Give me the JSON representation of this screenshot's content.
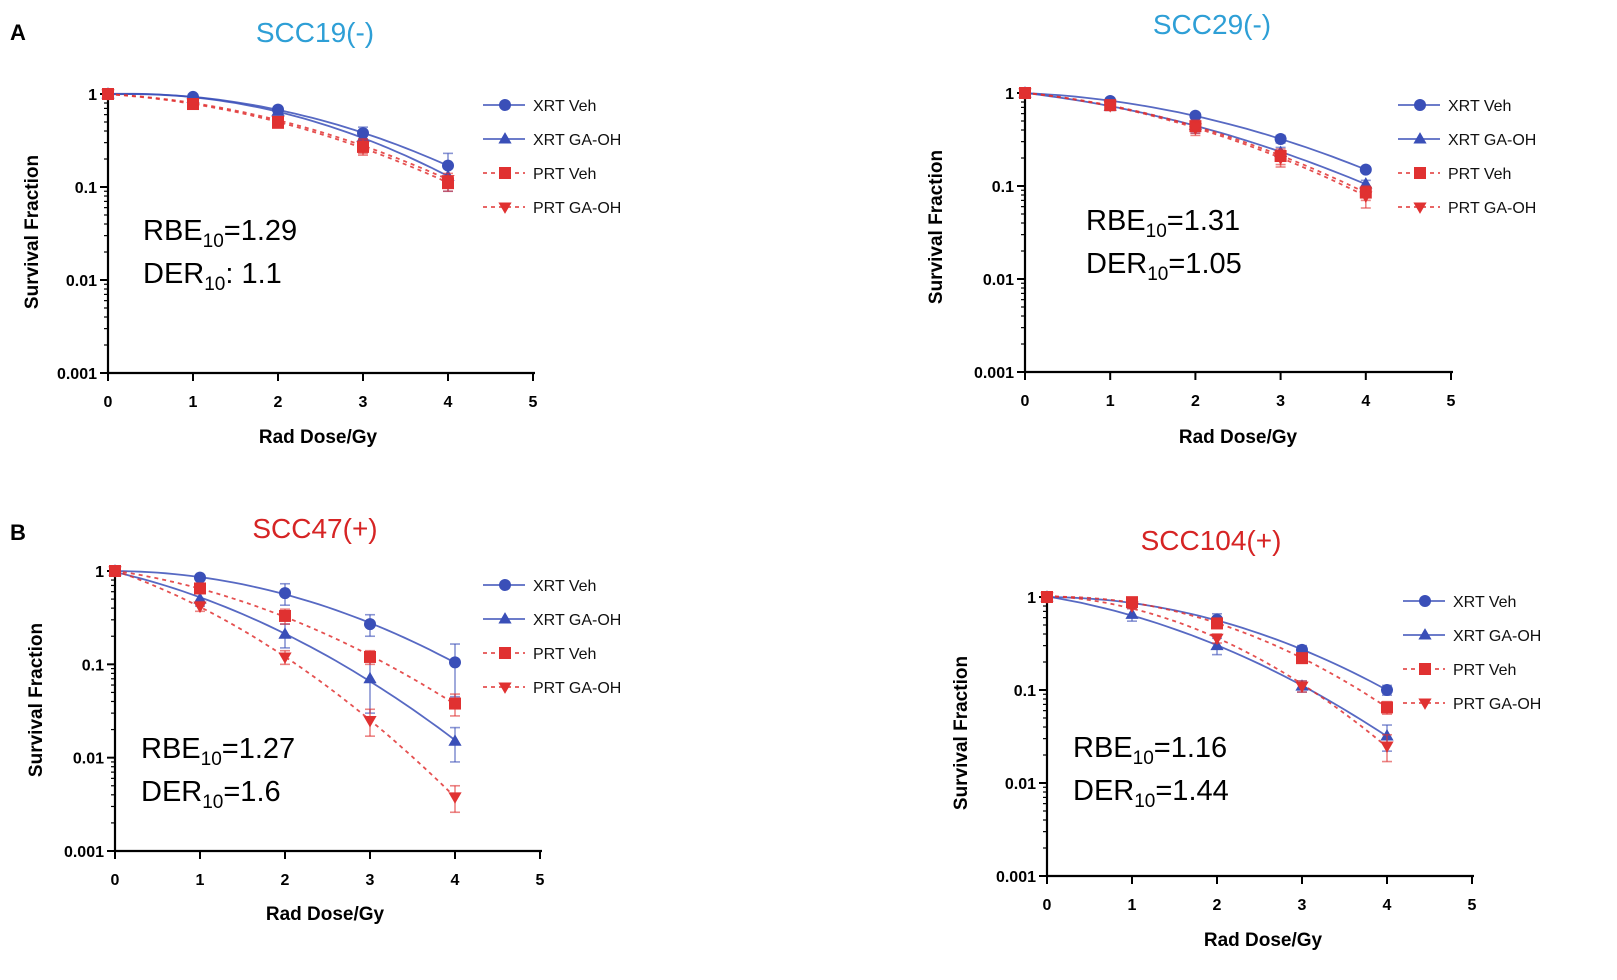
{
  "panel_labels": [
    "A",
    "B"
  ],
  "chart_data": [
    {
      "type": "line",
      "title": "SCC19(-)",
      "title_color": "#2e9fd6",
      "xlabel": "Rad Dose/Gy",
      "ylabel": "Survival Fraction",
      "xscale": "linear",
      "yscale": "log",
      "xlim": [
        0,
        5
      ],
      "ylim": [
        0.001,
        1
      ],
      "xticks": [
        "0",
        "1",
        "2",
        "3",
        "4",
        "5"
      ],
      "yticks": [
        "0.001",
        "0.01",
        "0.1",
        "1"
      ],
      "legend_position": "right",
      "annotation": {
        "rbe_label": "RBE",
        "rbe_sub": "10",
        "rbe_value": "=1.29",
        "der_label": "DER",
        "der_sub": "10",
        "der_value": ": 1.1"
      },
      "x": [
        0,
        1,
        2,
        3,
        4
      ],
      "series": [
        {
          "name": "XRT Veh",
          "color": "#3a4fb8",
          "marker": "circle",
          "dash": false,
          "values": [
            1,
            0.93,
            0.68,
            0.38,
            0.17
          ],
          "err": [
            0,
            0.03,
            0.05,
            0.06,
            0.06
          ]
        },
        {
          "name": "XRT GA-OH",
          "color": "#3a4fb8",
          "marker": "triangle-up",
          "dash": false,
          "values": [
            1,
            0.9,
            0.65,
            0.34,
            0.13
          ],
          "err": [
            0,
            0.03,
            0.05,
            0.05,
            0.04
          ]
        },
        {
          "name": "PRT Veh",
          "color": "#e03131",
          "marker": "square",
          "dash": true,
          "values": [
            1,
            0.78,
            0.49,
            0.27,
            0.11
          ],
          "err": [
            0,
            0.04,
            0.05,
            0.05,
            0.02
          ]
        },
        {
          "name": "PRT GA-OH",
          "color": "#e03131",
          "marker": "triangle-down",
          "dash": true,
          "values": [
            1,
            0.8,
            0.52,
            0.28,
            0.12
          ],
          "err": [
            0,
            0.04,
            0.05,
            0.05,
            0.02
          ]
        }
      ]
    },
    {
      "type": "line",
      "title": "SCC29(-)",
      "title_color": "#2e9fd6",
      "xlabel": "Rad Dose/Gy",
      "ylabel": "Survival Fraction",
      "xscale": "linear",
      "yscale": "log",
      "xlim": [
        0,
        5
      ],
      "ylim": [
        0.001,
        1
      ],
      "xticks": [
        "0",
        "1",
        "2",
        "3",
        "4",
        "5"
      ],
      "yticks": [
        "0.001",
        "0.01",
        "0.1",
        "1"
      ],
      "legend_position": "right",
      "annotation": {
        "rbe_label": "RBE",
        "rbe_sub": "10",
        "rbe_value": "=1.31",
        "der_label": "DER",
        "der_sub": "10",
        "der_value": "=1.05"
      },
      "x": [
        0,
        1,
        2,
        3,
        4
      ],
      "series": [
        {
          "name": "XRT Veh",
          "color": "#3a4fb8",
          "marker": "circle",
          "dash": false,
          "values": [
            1,
            0.82,
            0.57,
            0.32,
            0.15
          ],
          "err": [
            0,
            0.04,
            0.04,
            0.03,
            0.01
          ]
        },
        {
          "name": "XRT GA-OH",
          "color": "#3a4fb8",
          "marker": "triangle-up",
          "dash": false,
          "values": [
            1,
            0.72,
            0.45,
            0.23,
            0.105
          ],
          "err": [
            0,
            0.07,
            0.08,
            0.03,
            0.01
          ]
        },
        {
          "name": "PRT Veh",
          "color": "#e03131",
          "marker": "square",
          "dash": true,
          "values": [
            1,
            0.74,
            0.44,
            0.21,
            0.085
          ],
          "err": [
            0,
            0.06,
            0.07,
            0.04,
            0.015
          ]
        },
        {
          "name": "PRT GA-OH",
          "color": "#e03131",
          "marker": "triangle-down",
          "dash": true,
          "values": [
            1,
            0.73,
            0.42,
            0.2,
            0.078
          ],
          "err": [
            0,
            0.06,
            0.07,
            0.04,
            0.02
          ]
        }
      ]
    },
    {
      "type": "line",
      "title": "SCC47(+)",
      "title_color": "#d62424",
      "xlabel": "Rad Dose/Gy",
      "ylabel": "Survival Fraction",
      "xscale": "linear",
      "yscale": "log",
      "xlim": [
        0,
        5
      ],
      "ylim": [
        0.001,
        1
      ],
      "xticks": [
        "0",
        "1",
        "2",
        "3",
        "4",
        "5"
      ],
      "yticks": [
        "0.001",
        "0.01",
        "0.1",
        "1"
      ],
      "legend_position": "right",
      "annotation": {
        "rbe_label": "RBE",
        "rbe_sub": "10",
        "rbe_value": "=1.27",
        "der_label": "DER",
        "der_sub": "10",
        "der_value": "=1.6"
      },
      "x": [
        0,
        1,
        2,
        3,
        4
      ],
      "series": [
        {
          "name": "XRT Veh",
          "color": "#3a4fb8",
          "marker": "circle",
          "dash": false,
          "values": [
            1,
            0.85,
            0.58,
            0.27,
            0.105
          ],
          "err": [
            0,
            0.05,
            0.15,
            0.07,
            0.06
          ]
        },
        {
          "name": "XRT GA-OH",
          "color": "#3a4fb8",
          "marker": "triangle-up",
          "dash": false,
          "values": [
            1,
            0.5,
            0.21,
            0.07,
            0.015
          ],
          "err": [
            0,
            0.08,
            0.06,
            0.04,
            0.006
          ]
        },
        {
          "name": "PRT Veh",
          "color": "#e03131",
          "marker": "square",
          "dash": true,
          "values": [
            1,
            0.65,
            0.33,
            0.12,
            0.038
          ],
          "err": [
            0,
            0.06,
            0.06,
            0.02,
            0.01
          ]
        },
        {
          "name": "PRT GA-OH",
          "color": "#e03131",
          "marker": "triangle-down",
          "dash": true,
          "values": [
            1,
            0.42,
            0.12,
            0.025,
            0.0038
          ],
          "err": [
            0,
            0.05,
            0.02,
            0.008,
            0.0012
          ]
        }
      ]
    },
    {
      "type": "line",
      "title": "SCC104(+)",
      "title_color": "#d62424",
      "xlabel": "Rad Dose/Gy",
      "ylabel": "Survival Fraction",
      "xscale": "linear",
      "yscale": "log",
      "xlim": [
        0,
        5
      ],
      "ylim": [
        0.001,
        1
      ],
      "xticks": [
        "0",
        "1",
        "2",
        "3",
        "4",
        "5"
      ],
      "yticks": [
        "0.001",
        "0.01",
        "0.1",
        "1"
      ],
      "legend_position": "right",
      "annotation": {
        "rbe_label": "RBE",
        "rbe_sub": "10",
        "rbe_value": "=1.16",
        "der_label": "DER",
        "der_sub": "10",
        "der_value": "=1.44"
      },
      "x": [
        0,
        1,
        2,
        3,
        4
      ],
      "series": [
        {
          "name": "XRT Veh",
          "color": "#3a4fb8",
          "marker": "circle",
          "dash": false,
          "values": [
            1,
            0.85,
            0.57,
            0.27,
            0.1
          ],
          "err": [
            0,
            0.05,
            0.09,
            0.03,
            0.012
          ]
        },
        {
          "name": "XRT GA-OH",
          "color": "#3a4fb8",
          "marker": "triangle-up",
          "dash": false,
          "values": [
            1,
            0.65,
            0.3,
            0.11,
            0.032
          ],
          "err": [
            0,
            0.1,
            0.06,
            0.015,
            0.01
          ]
        },
        {
          "name": "PRT Veh",
          "color": "#e03131",
          "marker": "square",
          "dash": true,
          "values": [
            1,
            0.88,
            0.52,
            0.22,
            0.065
          ],
          "err": [
            0,
            0.05,
            0.06,
            0.02,
            0.01
          ]
        },
        {
          "name": "PRT GA-OH",
          "color": "#e03131",
          "marker": "triangle-down",
          "dash": true,
          "values": [
            1,
            0.8,
            0.36,
            0.11,
            0.025
          ],
          "err": [
            0,
            0.05,
            0.04,
            0.015,
            0.008
          ]
        }
      ]
    }
  ]
}
